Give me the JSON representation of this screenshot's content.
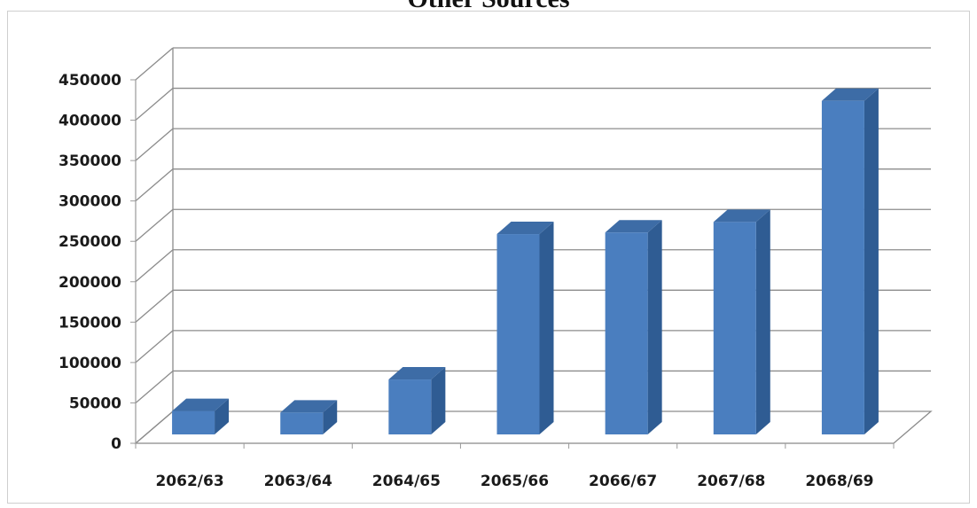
{
  "chart_data": {
    "type": "bar",
    "title": "Other Sources",
    "categories": [
      "2062/63",
      "2063/64",
      "2064/65",
      "2065/66",
      "2066/67",
      "2067/68",
      "2068/69"
    ],
    "values": [
      29000,
      27000,
      68000,
      248000,
      250000,
      263000,
      413000
    ],
    "ylim": [
      0,
      450000
    ],
    "yticks": [
      0,
      50000,
      100000,
      150000,
      200000,
      250000,
      300000,
      350000,
      400000,
      450000
    ],
    "ytick_labels": [
      "0",
      "50000",
      "100000",
      "150000",
      "200000",
      "250000",
      "300000",
      "350000",
      "400000",
      "450000"
    ],
    "grid": true,
    "style": "3d-column",
    "colors": {
      "bar_front": "#4a7ebf",
      "bar_side": "#2f5c93",
      "bar_top": "#3d6ca6",
      "grid": "#8c8c8c",
      "axis": "#9a9a9a"
    }
  }
}
